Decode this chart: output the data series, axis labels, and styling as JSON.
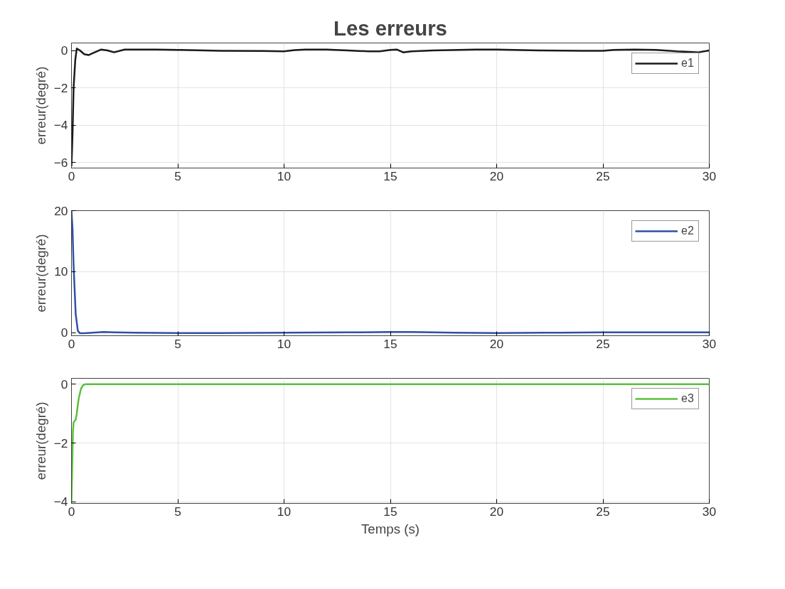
{
  "chart_data": [
    {
      "type": "line",
      "title": "Les erreurs",
      "ylabel": "erreur(degré)",
      "xlim": [
        0,
        30
      ],
      "xticks": [
        0,
        5,
        10,
        15,
        20,
        25,
        30
      ],
      "ylim": [
        -6.3,
        0.4
      ],
      "yticks": [
        -6,
        -4,
        -2,
        0
      ],
      "grid": true,
      "legend": "top right",
      "series": [
        {
          "name": "e1",
          "color": "#1a1a1a",
          "x": [
            0,
            0.05,
            0.1,
            0.18,
            0.25,
            0.4,
            0.6,
            0.8,
            1.0,
            1.4,
            1.7,
            2.0,
            2.5,
            3,
            4,
            5,
            7,
            9,
            10,
            10.5,
            11,
            12,
            13,
            14,
            14.5,
            15,
            15.3,
            15.6,
            16,
            17,
            19,
            20,
            22,
            24,
            25,
            25.5,
            26.5,
            27.5,
            28.5,
            29.5,
            30
          ],
          "values": [
            -6.2,
            -4.5,
            -2.0,
            -0.5,
            0.1,
            0.0,
            -0.2,
            -0.25,
            -0.15,
            0.05,
            0.0,
            -0.1,
            0.05,
            0.05,
            0.05,
            0.03,
            -0.02,
            -0.03,
            -0.05,
            0.02,
            0.05,
            0.05,
            0.0,
            -0.05,
            -0.05,
            0.03,
            0.05,
            -0.1,
            -0.05,
            0.0,
            0.05,
            0.05,
            0.0,
            -0.02,
            -0.02,
            0.03,
            0.05,
            0.03,
            -0.05,
            -0.1,
            0.0
          ]
        }
      ]
    },
    {
      "type": "line",
      "ylabel": "erreur(degré)",
      "xlim": [
        0,
        30
      ],
      "xticks": [
        0,
        5,
        10,
        15,
        20,
        25,
        30
      ],
      "ylim": [
        -0.5,
        20
      ],
      "yticks": [
        0,
        10,
        20
      ],
      "grid": true,
      "legend": "top right",
      "series": [
        {
          "name": "e2",
          "color": "#3050a8",
          "x": [
            0,
            0.05,
            0.1,
            0.2,
            0.3,
            0.4,
            0.6,
            1.0,
            1.5,
            2.0,
            3,
            5,
            7,
            10,
            13,
            15,
            16,
            18,
            20,
            23,
            25,
            28,
            30
          ],
          "values": [
            20,
            17,
            11,
            3,
            0.3,
            -0.1,
            -0.1,
            0.0,
            0.1,
            0.05,
            0.0,
            -0.05,
            -0.05,
            0.0,
            0.05,
            0.1,
            0.1,
            0.0,
            -0.05,
            0.0,
            0.05,
            0.05,
            0.05
          ]
        }
      ]
    },
    {
      "type": "line",
      "xlabel": "Temps (s)",
      "ylabel": "erreur(degré)",
      "xlim": [
        0,
        30
      ],
      "xticks": [
        0,
        5,
        10,
        15,
        20,
        25,
        30
      ],
      "ylim": [
        -4.05,
        0.2
      ],
      "yticks": [
        -4,
        -2,
        0
      ],
      "grid": true,
      "legend": "top right",
      "series": [
        {
          "name": "e3",
          "color": "#5cbf3c",
          "x": [
            0,
            0.03,
            0.07,
            0.1,
            0.2,
            0.25,
            0.3,
            0.35,
            0.45,
            0.55,
            0.65,
            1.0,
            5,
            10,
            15,
            20,
            25,
            30
          ],
          "values": [
            -4.0,
            -3.0,
            -1.6,
            -1.3,
            -1.2,
            -1.0,
            -0.7,
            -0.45,
            -0.15,
            -0.03,
            0.0,
            0.0,
            0.0,
            0.0,
            0.0,
            0.0,
            0.0,
            0.0
          ]
        }
      ]
    }
  ]
}
